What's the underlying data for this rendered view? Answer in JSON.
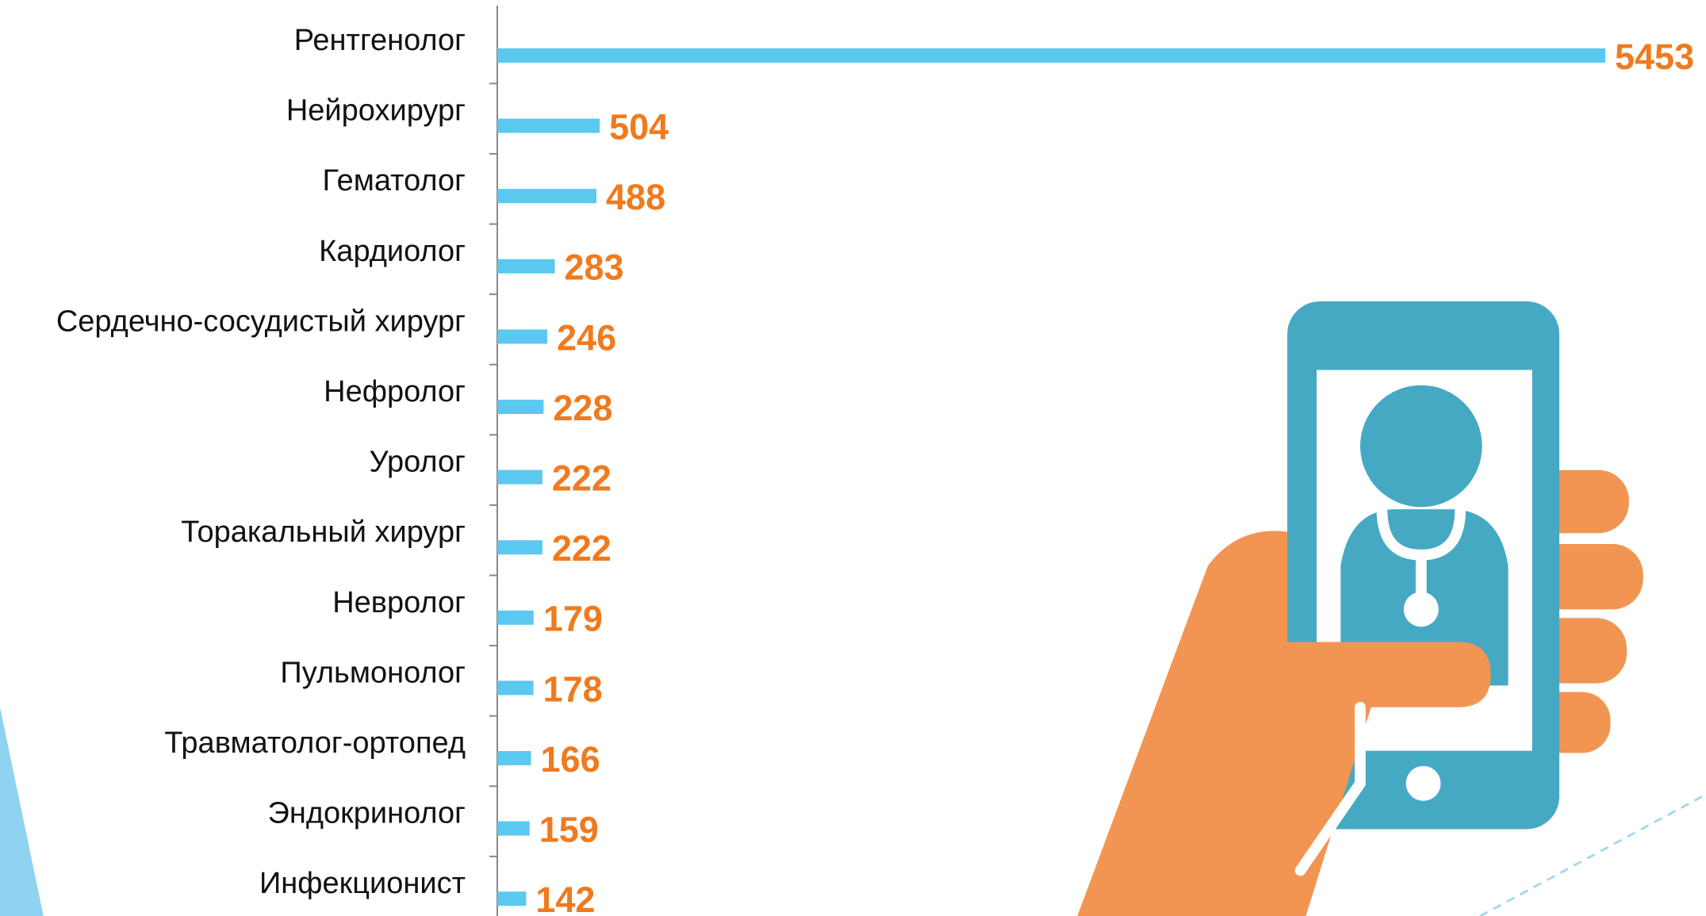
{
  "chart_data": {
    "type": "bar",
    "orientation": "horizontal",
    "color": "#5bc8f0",
    "value_label_color": "#f07a1e",
    "categories": [
      "Рентгенолог",
      "Нейрохирург",
      "Гематолог",
      "Кардиолог",
      "Сердечно-сосудистый хирург",
      "Нефролог",
      "Уролог",
      "Торакальный хирург",
      "Невролог",
      "Пульмонолог",
      "Травматолог-ортопед",
      "Эндокринолог",
      "Инфекционист"
    ],
    "values": [
      5453,
      504,
      488,
      283,
      246,
      228,
      222,
      222,
      179,
      178,
      166,
      159,
      142
    ]
  }
}
